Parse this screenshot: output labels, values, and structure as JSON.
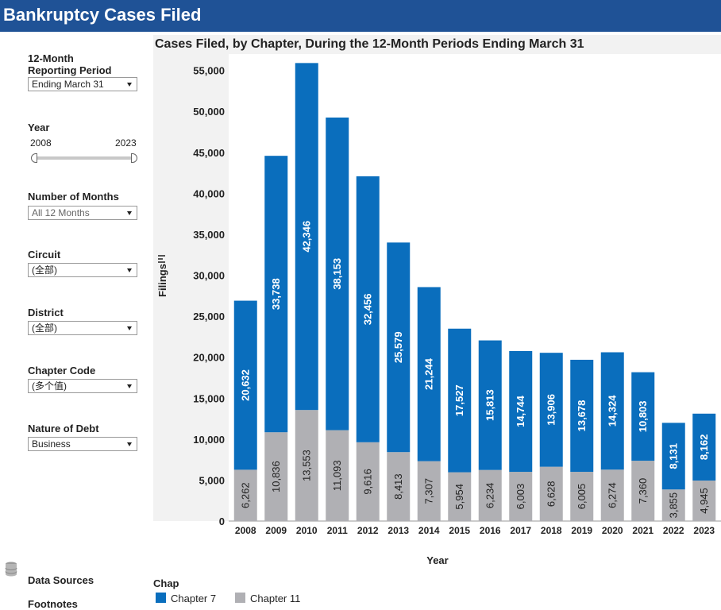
{
  "header": {
    "title": "Bankruptcy Cases Filed"
  },
  "filters": {
    "reporting_period": {
      "label_line1": "12-Month",
      "label_line2": "Reporting Period",
      "value": "Ending March 31"
    },
    "year": {
      "label": "Year",
      "min": "2008",
      "max": "2023"
    },
    "months": {
      "label": "Number of Months",
      "value": "All 12 Months"
    },
    "circuit": {
      "label": "Circuit",
      "value": "(全部)"
    },
    "district": {
      "label": "District",
      "value": "(全部)"
    },
    "chapter_code": {
      "label": "Chapter Code",
      "value": "(多个值)"
    },
    "nature_of_debt": {
      "label": "Nature of Debt",
      "value": "Business"
    }
  },
  "links": {
    "data_sources": "Data Sources",
    "footnotes": "Footnotes"
  },
  "icons": {
    "database": "database-icon",
    "filter": "filter-icon"
  },
  "legend": {
    "title": "Chap",
    "items": [
      "Chapter 7",
      "Chapter 11"
    ]
  },
  "colors": {
    "chapter7": "#0a6ebd",
    "chapter11": "#b0b0b4",
    "header": "#1f5296"
  },
  "chart_data": {
    "type": "bar",
    "stacked": true,
    "title": "Cases Filed, by Chapter, During the 12-Month Periods Ending March 31",
    "xlabel": "Year",
    "ylabel": "Filings",
    "ylim": [
      0,
      57000
    ],
    "yticks": [
      0,
      5000,
      10000,
      15000,
      20000,
      25000,
      30000,
      35000,
      40000,
      45000,
      50000,
      55000
    ],
    "categories": [
      "2008",
      "2009",
      "2010",
      "2011",
      "2012",
      "2013",
      "2014",
      "2015",
      "2016",
      "2017",
      "2018",
      "2019",
      "2020",
      "2021",
      "2022",
      "2023"
    ],
    "series": [
      {
        "name": "Chapter 11",
        "values": [
          6262,
          10836,
          13553,
          11093,
          9616,
          8413,
          7307,
          5954,
          6234,
          6003,
          6628,
          6005,
          6274,
          7360,
          3855,
          4945
        ],
        "labels": [
          "6,262",
          "10,836",
          "13,553",
          "11,093",
          "9,616",
          "8,413",
          "7,307",
          "5,954",
          "6,234",
          "6,003",
          "6,628",
          "6,005",
          "6,274",
          "7,360",
          "3,855",
          "4,945"
        ]
      },
      {
        "name": "Chapter 7",
        "values": [
          20632,
          33738,
          42346,
          38153,
          32456,
          25579,
          21244,
          17527,
          15813,
          14744,
          13906,
          13678,
          14324,
          10803,
          8131,
          8162
        ],
        "labels": [
          "20,632",
          "33,738",
          "42,346",
          "38,153",
          "32,456",
          "25,579",
          "21,244",
          "17,527",
          "15,813",
          "14,744",
          "13,906",
          "13,678",
          "14,324",
          "10,803",
          "8,131",
          "8,162"
        ]
      }
    ],
    "legend_position": "bottom-left",
    "grid": false
  }
}
